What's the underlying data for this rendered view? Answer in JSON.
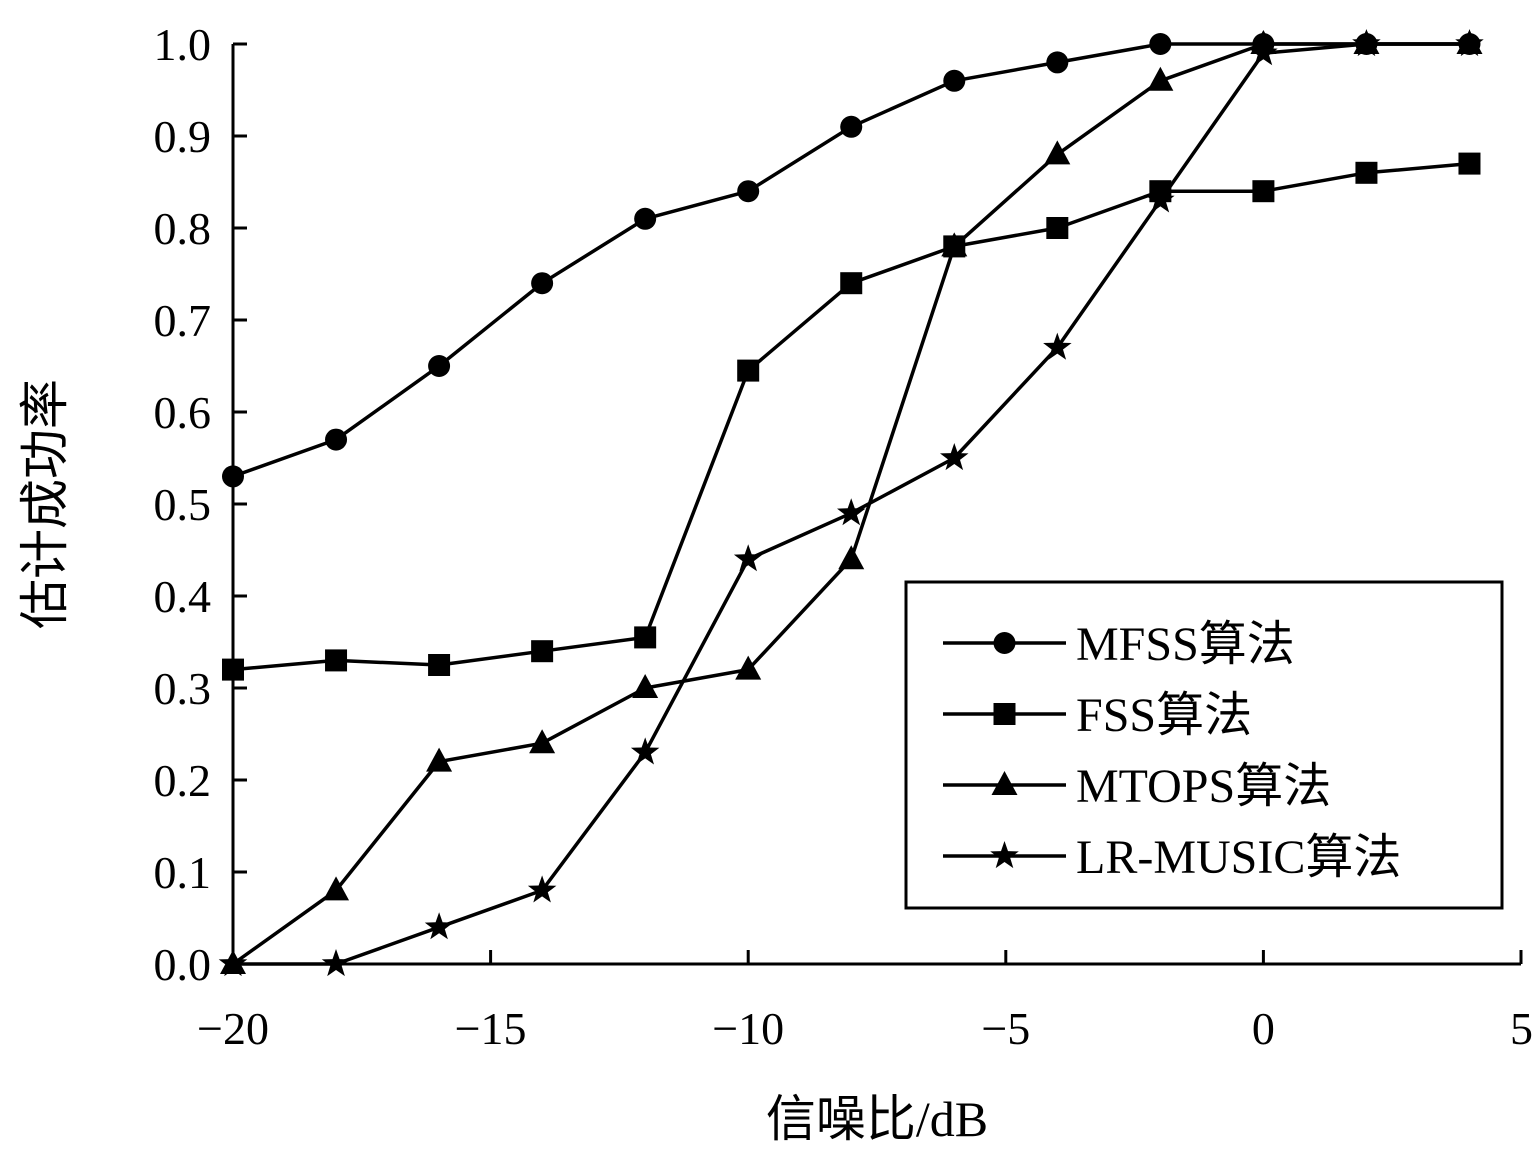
{
  "chart_data": {
    "type": "line",
    "title": "",
    "xlabel": "信噪比/dB",
    "ylabel": "估计成功率",
    "xlim": [
      -20,
      5
    ],
    "ylim": [
      0.0,
      1.0
    ],
    "x_ticks": [
      -20,
      -15,
      -10,
      -5,
      0,
      5
    ],
    "x_tick_labels": [
      "−20",
      "−15",
      "−10",
      "−5",
      "0",
      "5"
    ],
    "y_ticks": [
      0.0,
      0.1,
      0.2,
      0.3,
      0.4,
      0.5,
      0.6,
      0.7,
      0.8,
      0.9,
      1.0
    ],
    "y_tick_labels": [
      "0.0",
      "0.1",
      "0.2",
      "0.3",
      "0.4",
      "0.5",
      "0.6",
      "0.7",
      "0.8",
      "0.9",
      "1.0"
    ],
    "grid": false,
    "legend_position": "bottom-right",
    "x": [
      -20,
      -18,
      -16,
      -14,
      -12,
      -10,
      -8,
      -6,
      -4,
      -2,
      0,
      2,
      4
    ],
    "series": [
      {
        "name": "MFSS算法",
        "marker": "circle",
        "values": [
          0.53,
          0.57,
          0.65,
          0.74,
          0.81,
          0.84,
          0.91,
          0.96,
          0.98,
          1.0,
          1.0,
          1.0,
          1.0
        ]
      },
      {
        "name": "FSS算法",
        "marker": "square",
        "values": [
          0.32,
          0.33,
          0.325,
          0.34,
          0.355,
          0.645,
          0.74,
          0.78,
          0.8,
          0.84,
          0.84,
          0.86,
          0.87
        ]
      },
      {
        "name": "MTOPS算法",
        "marker": "triangle",
        "values": [
          0.0,
          0.08,
          0.22,
          0.24,
          0.3,
          0.32,
          0.44,
          0.78,
          0.88,
          0.96,
          1.0,
          1.0,
          1.0
        ]
      },
      {
        "name": "LR-MUSIC算法",
        "marker": "star",
        "values": [
          0.0,
          0.0,
          0.04,
          0.08,
          0.23,
          0.44,
          0.49,
          0.55,
          0.67,
          0.83,
          0.99,
          1.0,
          1.0
        ]
      }
    ],
    "colors": {
      "line": "#000000",
      "background": "#ffffff"
    }
  }
}
